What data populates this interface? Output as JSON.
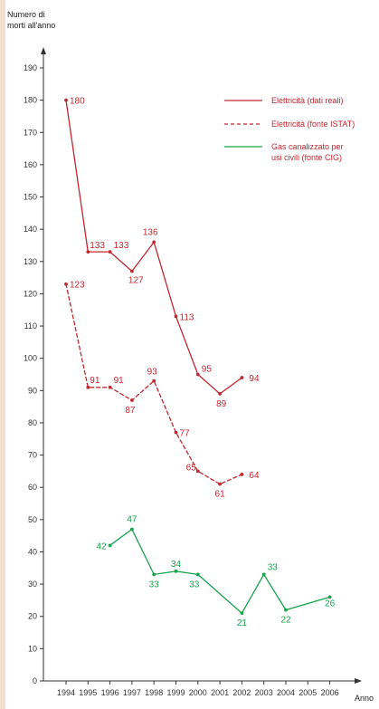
{
  "colors": {
    "electric": "#c0282f",
    "gas": "#17a34a",
    "axis": "#333333",
    "side_bar": "#f2dfcd"
  },
  "chart_data": {
    "type": "line",
    "ylabel_lines": [
      "Numero di",
      "morti all'anno"
    ],
    "xlabel": "Anno",
    "x": [
      1994,
      1995,
      1996,
      1997,
      1998,
      1999,
      2000,
      2001,
      2002,
      2003,
      2004,
      2005,
      2006
    ],
    "ylim": [
      0,
      190
    ],
    "yticks": [
      0,
      10,
      20,
      30,
      40,
      50,
      60,
      70,
      80,
      90,
      100,
      110,
      120,
      130,
      140,
      150,
      160,
      170,
      180,
      190
    ],
    "grid": false,
    "legend_position": "top-right",
    "series": [
      {
        "name": "Elettricità (dati reali)",
        "legend_lines": [
          "Elettricità (dati reali)"
        ],
        "style": "solid",
        "color_key": "electric",
        "points": [
          [
            1994,
            180
          ],
          [
            1995,
            133
          ],
          [
            1996,
            133
          ],
          [
            1997,
            127
          ],
          [
            1998,
            136
          ],
          [
            1999,
            113
          ],
          [
            2000,
            95
          ],
          [
            2001,
            89
          ],
          [
            2002,
            94
          ]
        ],
        "labels": [
          "180",
          "133",
          "133",
          "127",
          "136",
          "113",
          "95",
          "89",
          "94"
        ]
      },
      {
        "name": "Elettricità (fonte ISTAT)",
        "legend_lines": [
          "Elettricità (fonte ISTAT)"
        ],
        "style": "dashed",
        "color_key": "electric",
        "points": [
          [
            1994,
            123
          ],
          [
            1995,
            91
          ],
          [
            1996,
            91
          ],
          [
            1997,
            87
          ],
          [
            1998,
            93
          ],
          [
            1999,
            77
          ],
          [
            2000,
            65
          ],
          [
            2001,
            61
          ],
          [
            2002,
            64
          ]
        ],
        "labels": [
          "123",
          "91",
          "91",
          "87",
          "93",
          "77",
          "65",
          "61",
          "64"
        ]
      },
      {
        "name": "Gas canalizzato per usi civili (fonte CIG)",
        "legend_lines": [
          "Gas canalizzato per",
          "usi civili (fonte CIG)"
        ],
        "style": "solid",
        "color_key": "gas",
        "points": [
          [
            1996,
            42
          ],
          [
            1997,
            47
          ],
          [
            1998,
            33
          ],
          [
            1999,
            34
          ],
          [
            2000,
            33
          ],
          [
            2002,
            21
          ],
          [
            2003,
            33
          ],
          [
            2004,
            22
          ],
          [
            2006,
            26
          ]
        ],
        "labels": [
          "42",
          "47",
          "33",
          "34",
          "33",
          "21",
          "33",
          "22",
          "26"
        ]
      }
    ]
  }
}
